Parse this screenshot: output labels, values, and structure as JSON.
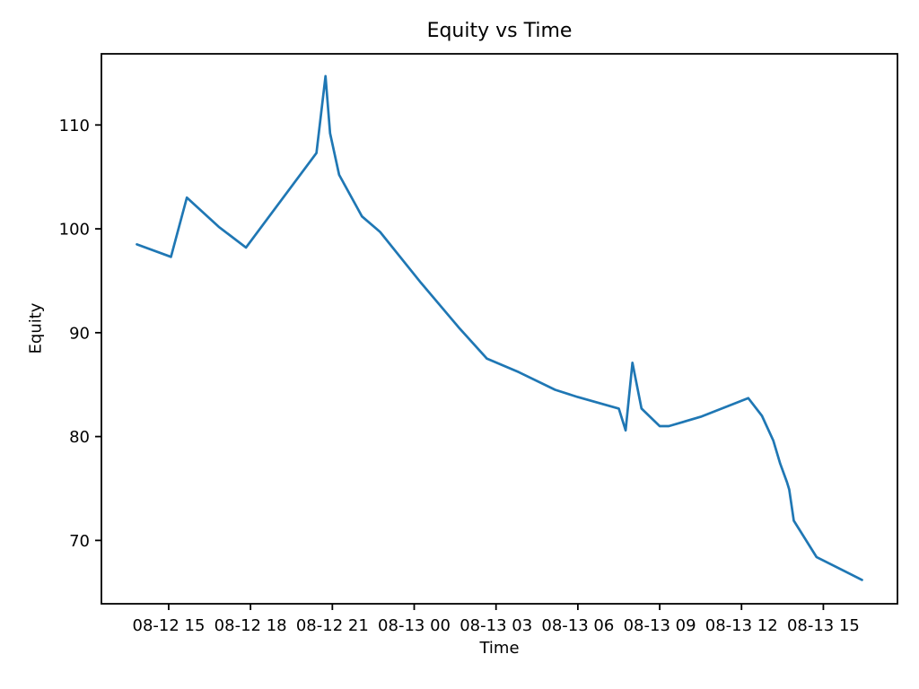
{
  "chart_data": {
    "type": "line",
    "title": "Equity vs Time",
    "xlabel": "Time",
    "ylabel": "Equity",
    "grid": false,
    "legend": null,
    "colors": {
      "line": "#1f77b4",
      "text": "#000000",
      "spine": "#000000",
      "background": "#ffffff"
    },
    "x_ticks": [
      {
        "time": "08-12 15:00",
        "label": "08-12 15"
      },
      {
        "time": "08-12 18:00",
        "label": "08-12 18"
      },
      {
        "time": "08-12 21:00",
        "label": "08-12 21"
      },
      {
        "time": "08-13 00:00",
        "label": "08-13 00"
      },
      {
        "time": "08-13 03:00",
        "label": "08-13 03"
      },
      {
        "time": "08-13 06:00",
        "label": "08-13 06"
      },
      {
        "time": "08-13 09:00",
        "label": "08-13 09"
      },
      {
        "time": "08-13 12:00",
        "label": "08-13 12"
      },
      {
        "time": "08-13 15:00",
        "label": "08-13 15"
      }
    ],
    "y_ticks": [
      70,
      80,
      90,
      100,
      110
    ],
    "xlim": [
      "08-12 12:32",
      "08-13 17:43"
    ],
    "ylim": [
      63.9,
      116.85
    ],
    "series": [
      {
        "name": "equity",
        "color": "#1f77b4",
        "x": [
          "08-12 13:50",
          "08-12 15:05",
          "08-12 15:40",
          "08-12 16:50",
          "08-12 17:50",
          "08-12 20:25",
          "08-12 20:45",
          "08-12 20:55",
          "08-12 21:15",
          "08-12 21:55",
          "08-12 22:05",
          "08-12 22:45",
          "08-13 00:15",
          "08-13 01:40",
          "08-13 02:40",
          "08-13 03:50",
          "08-13 05:10",
          "08-13 06:00",
          "08-13 07:30",
          "08-13 07:45",
          "08-13 08:00",
          "08-13 08:20",
          "08-13 09:00",
          "08-13 09:20",
          "08-13 10:30",
          "08-13 12:15",
          "08-13 12:45",
          "08-13 13:10",
          "08-13 13:25",
          "08-13 13:40",
          "08-13 13:45",
          "08-13 13:55",
          "08-13 14:45",
          "08-13 16:25"
        ],
        "y": [
          98.5,
          97.3,
          103.0,
          100.2,
          98.2,
          107.3,
          114.7,
          109.2,
          105.2,
          102.0,
          101.2,
          99.7,
          94.8,
          90.4,
          87.5,
          86.2,
          84.5,
          83.8,
          82.7,
          80.6,
          87.1,
          82.7,
          81.0,
          81.0,
          81.9,
          83.7,
          82.0,
          79.6,
          77.4,
          75.6,
          74.9,
          71.9,
          68.4,
          66.2
        ]
      }
    ]
  }
}
